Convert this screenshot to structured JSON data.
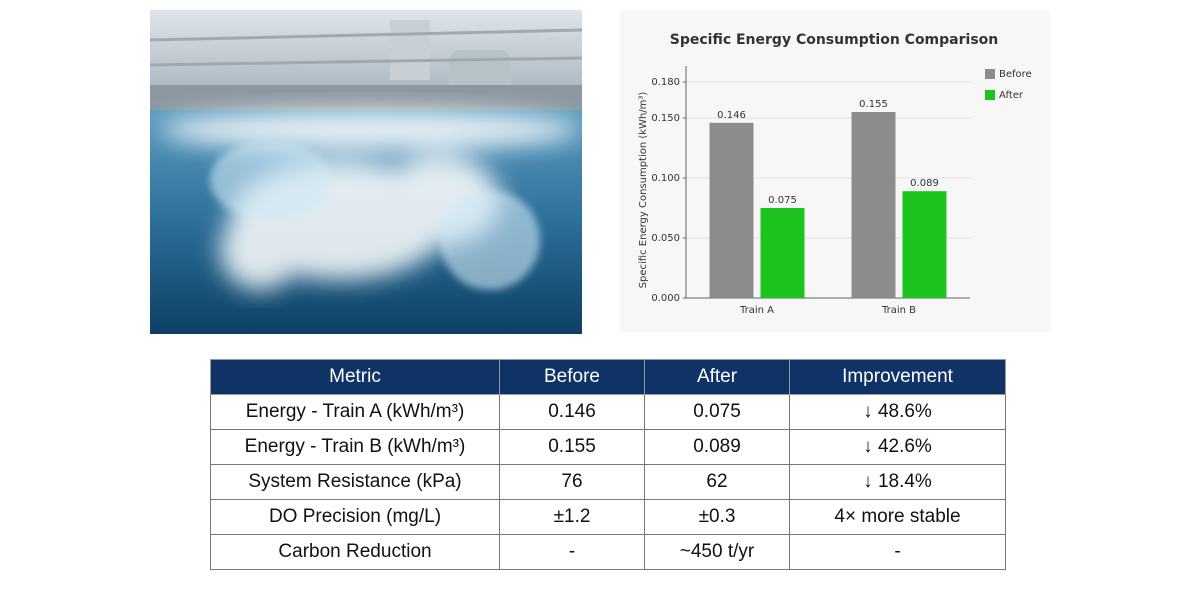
{
  "chart_data": {
    "type": "bar",
    "title": "Specific Energy Consumption Comparison",
    "y_label": "Specific Energy Consumption (kWh/m³)",
    "categories": [
      "Train A",
      "Train B"
    ],
    "series": [
      {
        "name": "Before",
        "color": "#8c8c8c",
        "values": [
          0.146,
          0.155
        ]
      },
      {
        "name": "After",
        "color": "#1ec41e",
        "values": [
          0.075,
          0.089
        ]
      }
    ],
    "ylim": [
      0,
      0.18
    ],
    "yticks": [
      {
        "value": 0,
        "label": "0.000"
      },
      {
        "value": 0.05,
        "label": "0.050"
      },
      {
        "value": 0.1,
        "label": "0.100"
      },
      {
        "value": 0.15,
        "label": "0.150"
      },
      {
        "value": 0.18,
        "label": "0.180"
      }
    ],
    "grid": true,
    "legend": "top-right"
  },
  "table": {
    "header": [
      "Metric",
      "Before",
      "After",
      "Improvement"
    ],
    "rows": [
      [
        "Energy - Train A (kWh/m³)",
        "0.146",
        "0.075",
        "↓ 48.6%"
      ],
      [
        "Energy - Train B (kWh/m³)",
        "0.155",
        "0.089",
        "↓ 42.6%"
      ],
      [
        "System Resistance (kPa)",
        "76",
        "62",
        "↓ 18.4%"
      ],
      [
        "DO Precision (mg/L)",
        "±1.2",
        "±0.3",
        "4× more stable"
      ],
      [
        "Carbon Reduction",
        "-",
        "~450 t/yr",
        "-"
      ]
    ]
  }
}
